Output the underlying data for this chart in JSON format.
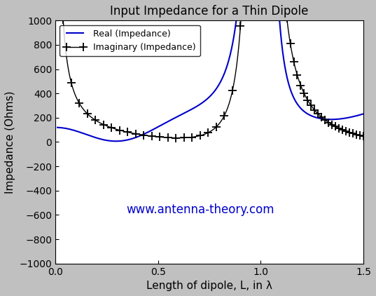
{
  "title": "Input Impedance for a Thin Dipole",
  "xlabel": "Length of dipole, L, in λ",
  "ylabel": "Impedance (Ohms)",
  "xlim": [
    0,
    1.5
  ],
  "ylim": [
    -1000,
    1000
  ],
  "yticks": [
    -1000,
    -800,
    -600,
    -400,
    -200,
    0,
    200,
    400,
    600,
    800,
    1000
  ],
  "xticks": [
    0,
    0.5,
    1.0,
    1.5
  ],
  "real_color": "#0000CC",
  "imag_color": "#000000",
  "legend_real": "Real (Impedance)",
  "legend_imag": "Imaginary (Impedance)",
  "watermark_text": "www.antenna-theory.com",
  "watermark_color": "#0000CC",
  "background_color": "#C0C0C0",
  "axes_background": "#FFFFFF",
  "figsize": [
    5.37,
    4.22
  ],
  "dpi": 100
}
